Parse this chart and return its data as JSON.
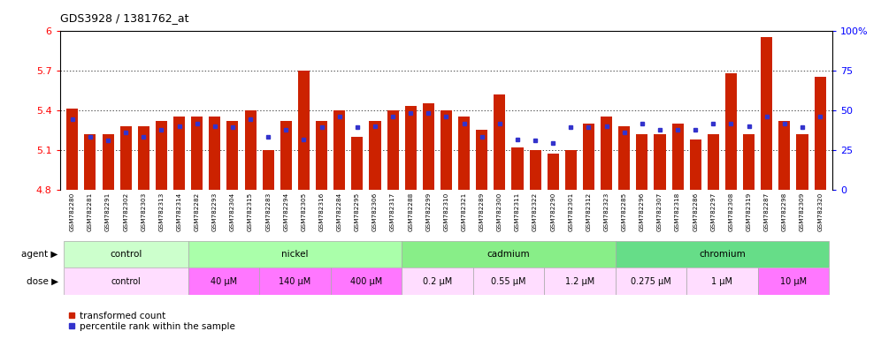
{
  "title": "GDS3928 / 1381762_at",
  "samples": [
    "GSM782280",
    "GSM782281",
    "GSM782291",
    "GSM782302",
    "GSM782303",
    "GSM782313",
    "GSM782314",
    "GSM782282",
    "GSM782293",
    "GSM782304",
    "GSM782315",
    "GSM782283",
    "GSM782294",
    "GSM782305",
    "GSM782316",
    "GSM782284",
    "GSM782295",
    "GSM782306",
    "GSM782317",
    "GSM782288",
    "GSM782299",
    "GSM782310",
    "GSM782321",
    "GSM782289",
    "GSM782300",
    "GSM782311",
    "GSM782322",
    "GSM782290",
    "GSM782301",
    "GSM782312",
    "GSM782323",
    "GSM782285",
    "GSM782296",
    "GSM782307",
    "GSM782318",
    "GSM782286",
    "GSM782297",
    "GSM782308",
    "GSM782319",
    "GSM782287",
    "GSM782298",
    "GSM782309",
    "GSM782320"
  ],
  "bar_values": [
    5.41,
    5.22,
    5.22,
    5.28,
    5.28,
    5.32,
    5.35,
    5.35,
    5.35,
    5.32,
    5.4,
    5.1,
    5.32,
    5.7,
    5.32,
    5.4,
    5.2,
    5.32,
    5.4,
    5.43,
    5.45,
    5.4,
    5.35,
    5.25,
    5.52,
    5.12,
    5.1,
    5.07,
    5.1,
    5.3,
    5.35,
    5.28,
    5.22,
    5.22,
    5.3,
    5.18,
    5.22,
    5.68,
    5.22,
    5.95,
    5.32,
    5.22,
    5.65
  ],
  "percentile_values": [
    5.33,
    5.2,
    5.17,
    5.23,
    5.2,
    5.25,
    5.28,
    5.3,
    5.28,
    5.27,
    5.33,
    5.2,
    5.25,
    5.18,
    5.27,
    5.35,
    5.27,
    5.28,
    5.35,
    5.38,
    5.38,
    5.35,
    5.3,
    5.2,
    5.3,
    5.18,
    5.17,
    5.15,
    5.27,
    5.27,
    5.28,
    5.23,
    5.3,
    5.25,
    5.25,
    5.25,
    5.3,
    5.3,
    5.28,
    5.35,
    5.3,
    5.27,
    5.35
  ],
  "ymin": 4.8,
  "ymax": 6.0,
  "yticks": [
    4.8,
    5.1,
    5.4,
    5.7,
    6.0
  ],
  "ytick_labels": [
    "4.8",
    "5.1",
    "5.4",
    "5.7",
    "6"
  ],
  "bar_color": "#cc2200",
  "percentile_color": "#3333cc",
  "right_yticks": [
    0,
    25,
    50,
    75,
    100
  ],
  "right_ytick_labels": [
    "0",
    "25",
    "50",
    "75",
    "100%"
  ],
  "agent_groups": [
    {
      "label": "control",
      "start": 0,
      "end": 7,
      "color": "#ccffcc"
    },
    {
      "label": "nickel",
      "start": 7,
      "end": 19,
      "color": "#aaffaa"
    },
    {
      "label": "cadmium",
      "start": 19,
      "end": 31,
      "color": "#88ee88"
    },
    {
      "label": "chromium",
      "start": 31,
      "end": 43,
      "color": "#66dd88"
    }
  ],
  "dose_groups": [
    {
      "label": "control",
      "start": 0,
      "end": 7,
      "color": "#ffddff"
    },
    {
      "label": "40 μM",
      "start": 7,
      "end": 11,
      "color": "#ff77ff"
    },
    {
      "label": "140 μM",
      "start": 11,
      "end": 15,
      "color": "#ff77ff"
    },
    {
      "label": "400 μM",
      "start": 15,
      "end": 19,
      "color": "#ff77ff"
    },
    {
      "label": "0.2 μM",
      "start": 19,
      "end": 23,
      "color": "#ffddff"
    },
    {
      "label": "0.55 μM",
      "start": 23,
      "end": 27,
      "color": "#ffddff"
    },
    {
      "label": "1.2 μM",
      "start": 27,
      "end": 31,
      "color": "#ffddff"
    },
    {
      "label": "0.275 μM",
      "start": 31,
      "end": 35,
      "color": "#ffddff"
    },
    {
      "label": "1 μM",
      "start": 35,
      "end": 39,
      "color": "#ffddff"
    },
    {
      "label": "10 μM",
      "start": 39,
      "end": 43,
      "color": "#ff77ff"
    }
  ]
}
